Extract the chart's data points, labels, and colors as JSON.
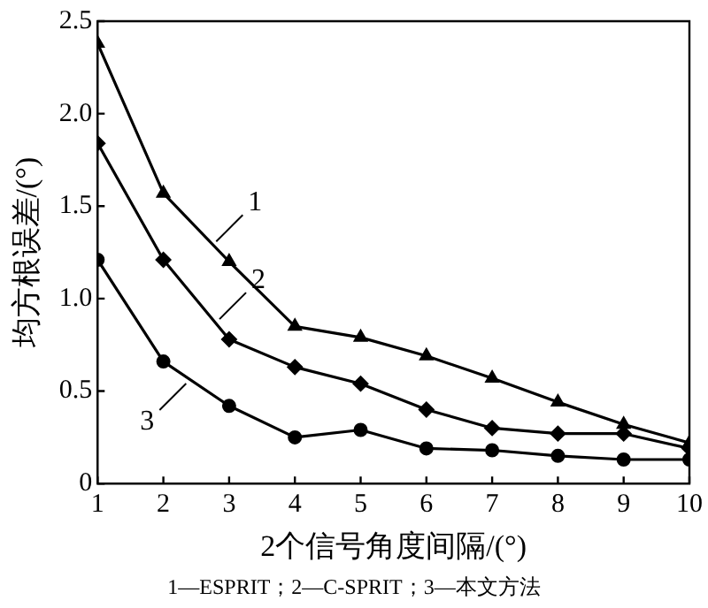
{
  "chart_data": {
    "type": "line",
    "xlabel": "2个信号角度间隔/(°)",
    "ylabel": "均方根误差/(°)",
    "x": [
      1,
      2,
      3,
      4,
      5,
      6,
      7,
      8,
      9,
      10
    ],
    "xlim": [
      1,
      10
    ],
    "xticks": [
      1,
      2,
      3,
      4,
      5,
      6,
      7,
      8,
      9,
      10
    ],
    "ylim": [
      0,
      2.5
    ],
    "yticks": [
      0,
      0.5,
      {
        "value": 1,
        "label": "1.0"
      },
      1.5,
      {
        "value": 2,
        "label": "2.0"
      },
      2.5
    ],
    "grid": false,
    "legend": false,
    "line_style": "solid",
    "series": [
      {
        "color": "#000000",
        "marker": "triangle",
        "values": [
          2.38,
          1.57,
          1.2,
          0.85,
          0.79,
          0.69,
          0.57,
          0.44,
          0.32,
          0.22
        ]
      },
      {
        "color": "#000000",
        "marker": "diamond",
        "values": [
          1.84,
          1.21,
          0.78,
          0.63,
          0.54,
          0.4,
          0.3,
          0.27,
          0.27,
          0.19
        ]
      },
      {
        "color": "#000000",
        "marker": "circle",
        "values": [
          1.21,
          0.66,
          0.42,
          0.25,
          0.29,
          0.19,
          0.18,
          0.15,
          0.13,
          0.13
        ]
      }
    ],
    "annotations": [
      {
        "text": "1",
        "x": 2.75,
        "y": 1.29
      },
      {
        "text": "2",
        "x": 2.8,
        "y": 0.87
      },
      {
        "text": "3",
        "x": 2.4,
        "y": 0.56
      },
      "1—ESPRIT；2—C-SPRIT；3—本文方法"
    ]
  }
}
